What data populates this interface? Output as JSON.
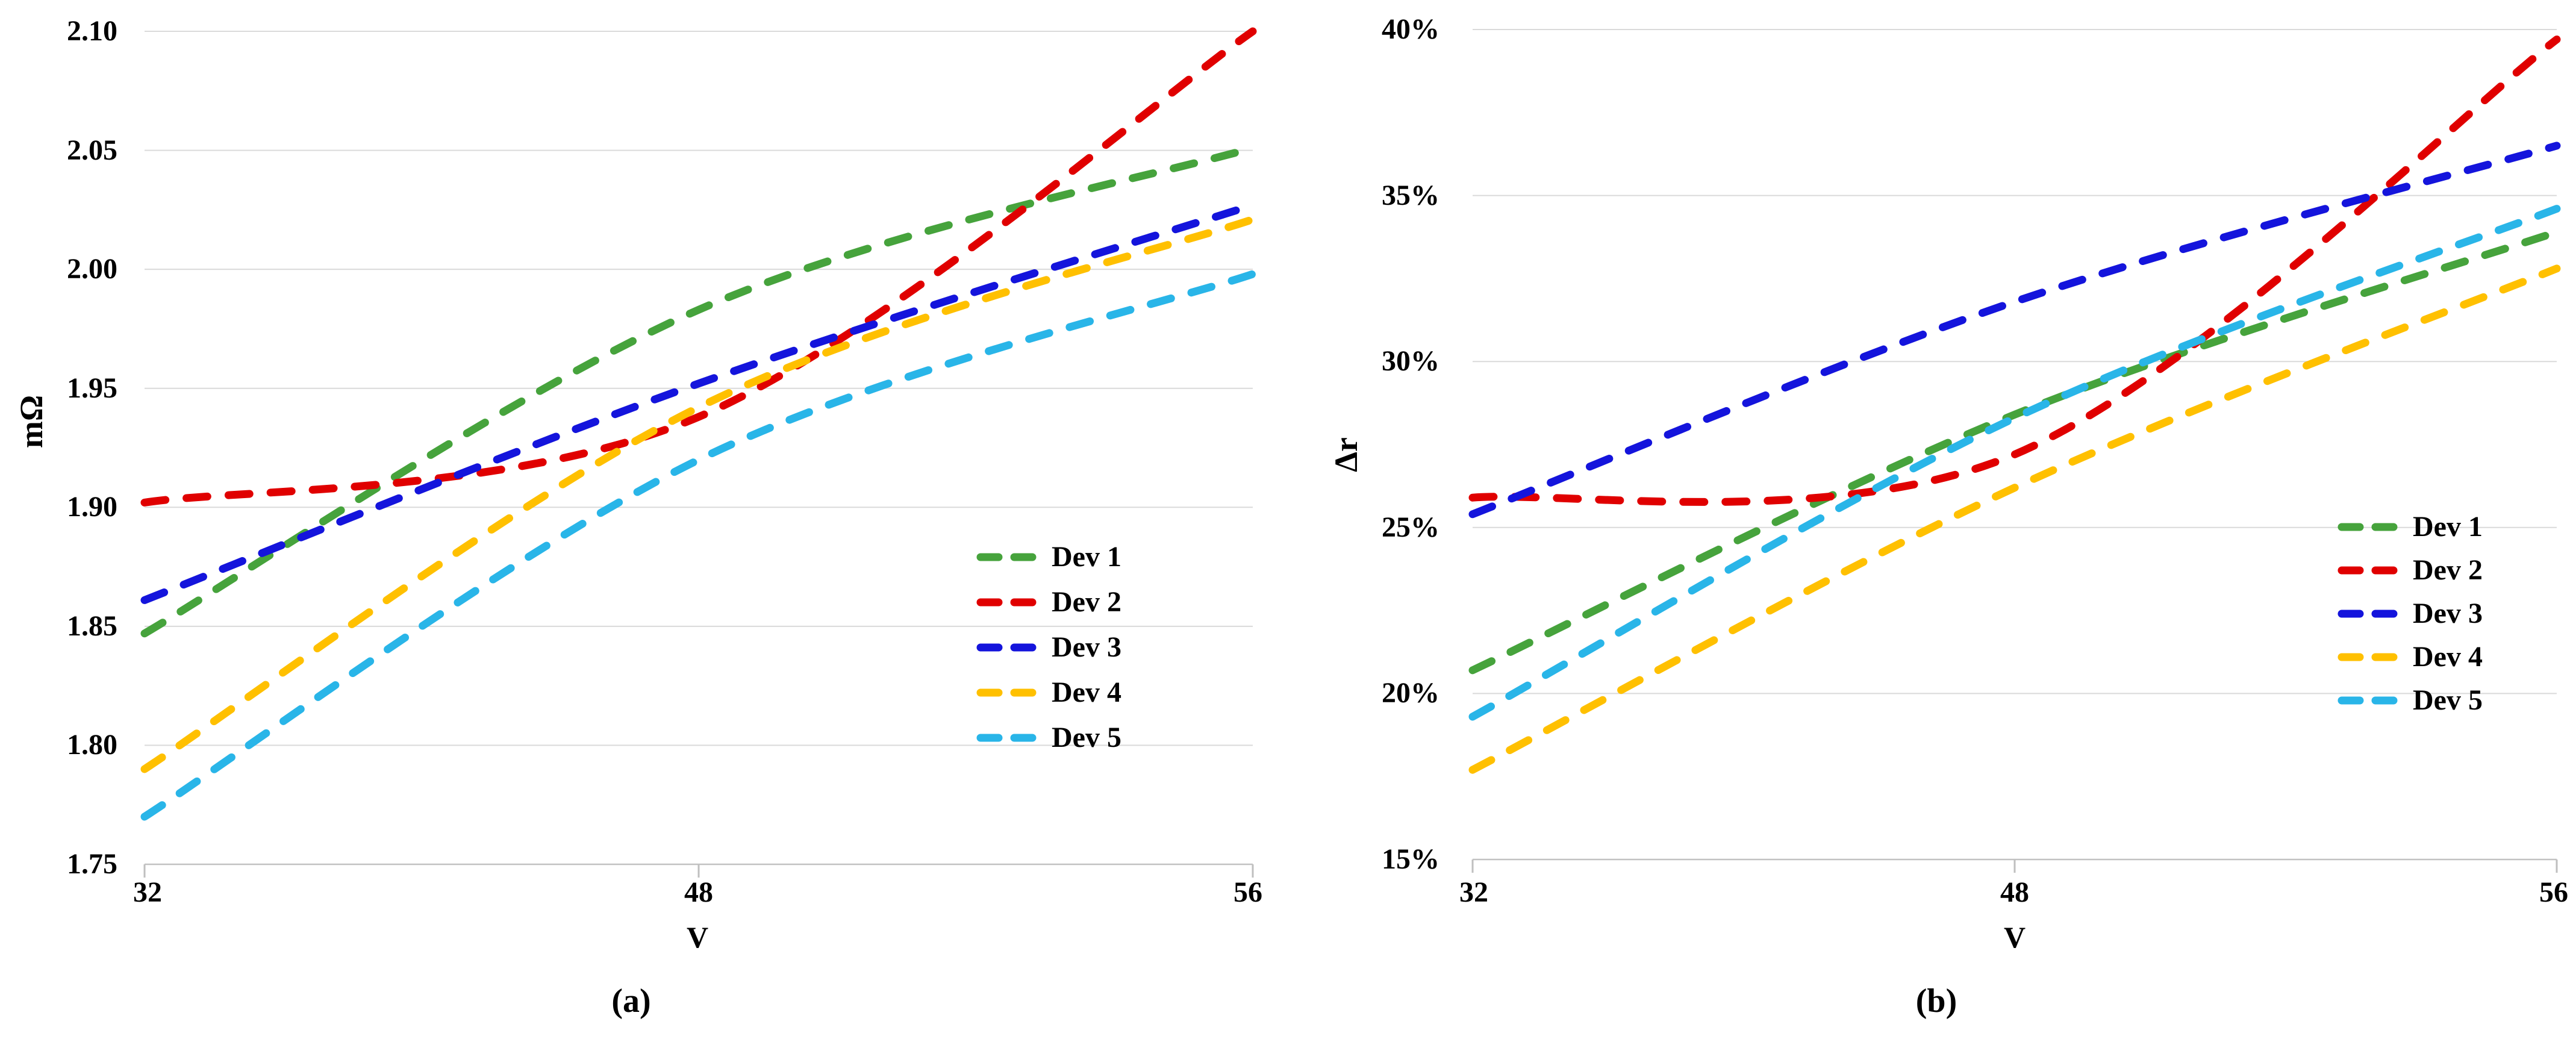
{
  "figure": {
    "panels": [
      {
        "label": "(a)",
        "x_axis_title": "V",
        "y_axis_title": "mΩ",
        "y_tick_labels": [
          "2.10",
          "2.05",
          "2.00",
          "1.95",
          "1.90",
          "1.85",
          "1.80",
          "1.75"
        ],
        "x_tick_labels": [
          "32",
          "48",
          "56"
        ]
      },
      {
        "label": "(b)",
        "x_axis_title": "V",
        "y_axis_title": "Δr",
        "y_tick_labels": [
          "40%",
          "35%",
          "30%",
          "25%",
          "20%",
          "15%"
        ],
        "x_tick_labels": [
          "32",
          "48",
          "56"
        ]
      }
    ],
    "colors": {
      "gridline": "#DADADA",
      "axis_line": "#C2C2C2",
      "tick_mark": "#BFBFBF",
      "text": "#000000"
    }
  },
  "chart_data": [
    {
      "type": "line",
      "title": "(a)",
      "xlabel": "V",
      "ylabel": "mΩ",
      "x": [
        32,
        48,
        56
      ],
      "x_scale": "categorical-equal-spacing",
      "ylim": [
        1.75,
        2.1
      ],
      "ytick_step": 0.05,
      "grid": "horizontal",
      "line_style": "dashed-smooth",
      "legend_position": "inside-center-right",
      "series": [
        {
          "name": "Dev 1",
          "color": "#46A33C",
          "values": [
            1.847,
            1.983,
            2.051
          ]
        },
        {
          "name": "Dev 2",
          "color": "#E00000",
          "values": [
            1.902,
            1.938,
            2.1
          ]
        },
        {
          "name": "Dev 3",
          "color": "#1414DC",
          "values": [
            1.861,
            1.952,
            2.027
          ]
        },
        {
          "name": "Dev 4",
          "color": "#FFC000",
          "values": [
            1.79,
            1.942,
            2.021
          ]
        },
        {
          "name": "Dev 5",
          "color": "#29B5E8",
          "values": [
            1.77,
            1.92,
            1.998
          ]
        }
      ]
    },
    {
      "type": "line",
      "title": "(b)",
      "xlabel": "V",
      "ylabel": "Δr",
      "x": [
        32,
        48,
        56
      ],
      "x_scale": "categorical-equal-spacing",
      "ylim": [
        15,
        40
      ],
      "ytick_step": 5,
      "ytick_format": "percent",
      "grid": "horizontal",
      "line_style": "dashed-smooth",
      "legend_position": "inside-center-right",
      "series": [
        {
          "name": "Dev 1",
          "color": "#46A33C",
          "values": [
            20.7,
            28.4,
            33.9
          ]
        },
        {
          "name": "Dev 2",
          "color": "#E00000",
          "values": [
            25.9,
            27.2,
            39.7
          ]
        },
        {
          "name": "Dev 3",
          "color": "#1414DC",
          "values": [
            25.4,
            31.8,
            36.5
          ]
        },
        {
          "name": "Dev 4",
          "color": "#FFC000",
          "values": [
            17.7,
            26.2,
            32.8
          ]
        },
        {
          "name": "Dev 5",
          "color": "#29B5E8",
          "values": [
            19.3,
            28.3,
            34.6
          ]
        }
      ]
    }
  ]
}
